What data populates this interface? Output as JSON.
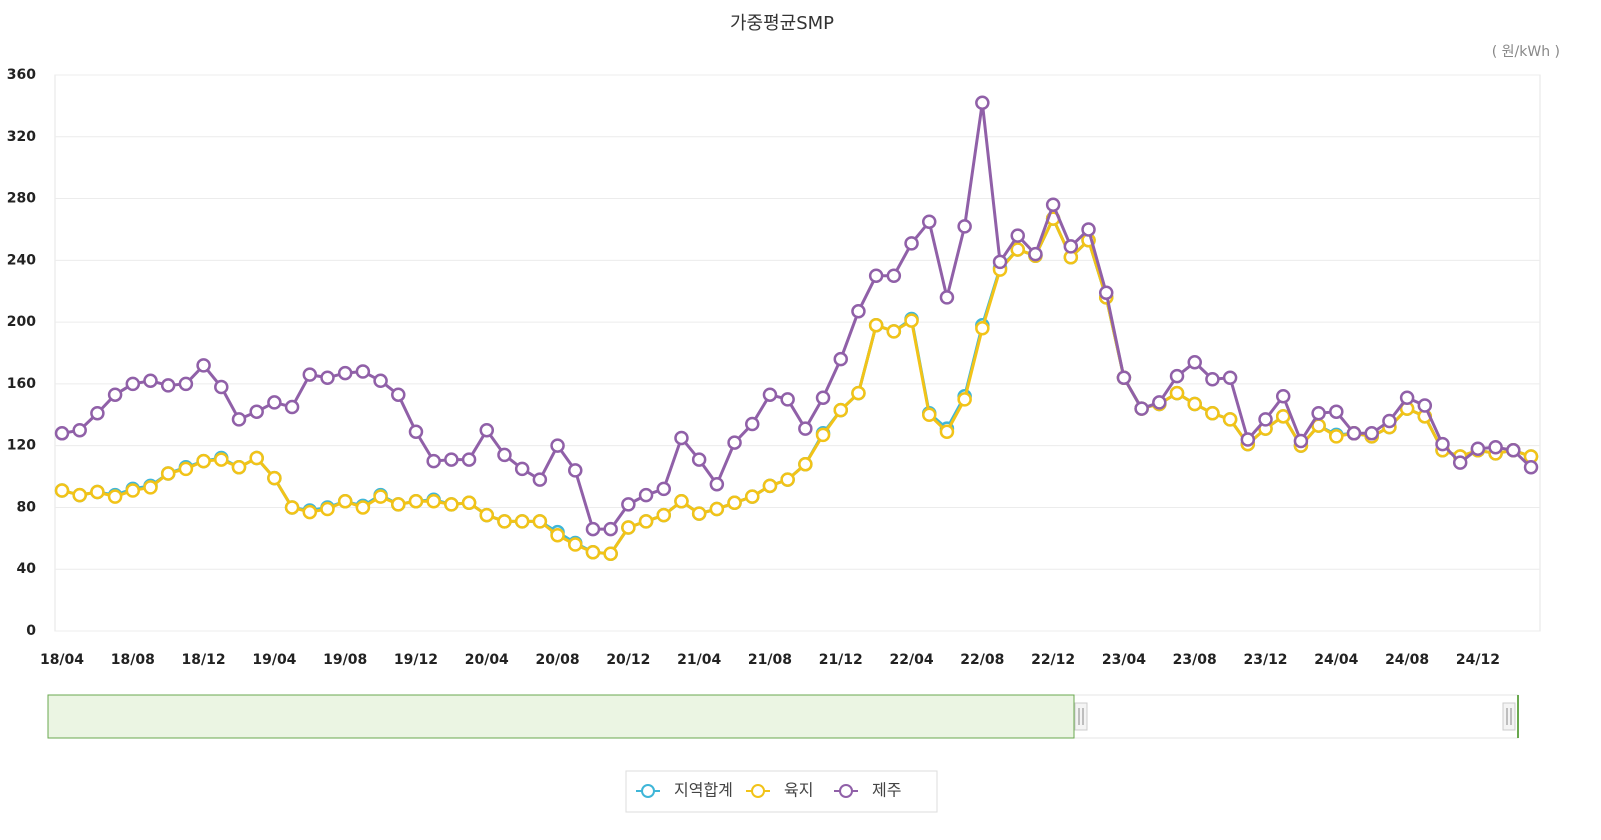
{
  "chart_data": {
    "type": "line",
    "title": "가중평균SMP",
    "unit_label": "( 원/kWh )",
    "categories": [
      "18/04",
      null,
      null,
      null,
      "18/08",
      null,
      null,
      null,
      "18/12",
      null,
      null,
      null,
      "19/04",
      null,
      null,
      null,
      "19/08",
      null,
      null,
      null,
      "19/12",
      null,
      null,
      null,
      "20/04",
      null,
      null,
      null,
      "20/08",
      null,
      null,
      null,
      "20/12",
      null,
      null,
      null,
      "21/04",
      null,
      null,
      null,
      "21/08",
      null,
      null,
      null,
      "21/12",
      null,
      null,
      null,
      "22/04",
      null,
      null,
      null,
      "22/08",
      null,
      null,
      null,
      "22/12",
      null,
      null,
      null,
      "23/04",
      null,
      null,
      null,
      "23/08",
      null,
      null,
      null,
      "23/12",
      null,
      null,
      null,
      "24/04",
      null,
      null,
      null,
      "24/08",
      null,
      null,
      null,
      "24/12",
      null,
      null,
      null
    ],
    "series": [
      {
        "name": "지역합계",
        "color": "#3fb6d8",
        "values": [
          91,
          88,
          90,
          88,
          92,
          94,
          102,
          106,
          110,
          112,
          106,
          112,
          99,
          80,
          78,
          80,
          84,
          81,
          88,
          82,
          84,
          85,
          82,
          83,
          75,
          71,
          71,
          71,
          64,
          57,
          51,
          50,
          67,
          71,
          75,
          84,
          76,
          79,
          83,
          87,
          94,
          98,
          108,
          128,
          143,
          154,
          198,
          194,
          202,
          141,
          131,
          152,
          198,
          235,
          247,
          243,
          267,
          242,
          253,
          216,
          164,
          144,
          147,
          154,
          147,
          141,
          137,
          121,
          131,
          139,
          120,
          133,
          127,
          128,
          126,
          132,
          144,
          139,
          117,
          113,
          117,
          115,
          117,
          113
        ]
      },
      {
        "name": "육지",
        "color": "#f2c318",
        "values": [
          91,
          88,
          90,
          87,
          91,
          93,
          102,
          105,
          110,
          111,
          106,
          112,
          99,
          80,
          77,
          79,
          84,
          80,
          87,
          82,
          84,
          84,
          82,
          83,
          75,
          71,
          71,
          71,
          62,
          56,
          51,
          50,
          67,
          71,
          75,
          84,
          76,
          79,
          83,
          87,
          94,
          98,
          108,
          127,
          143,
          154,
          198,
          194,
          201,
          140,
          129,
          150,
          196,
          234,
          247,
          243,
          267,
          242,
          253,
          216,
          164,
          144,
          147,
          154,
          147,
          141,
          137,
          121,
          131,
          139,
          120,
          133,
          126,
          128,
          126,
          132,
          144,
          139,
          117,
          113,
          117,
          115,
          117,
          113
        ]
      },
      {
        "name": "제주",
        "color": "#9060a8",
        "values": [
          128,
          130,
          141,
          153,
          160,
          162,
          159,
          160,
          172,
          158,
          137,
          142,
          148,
          145,
          166,
          164,
          167,
          168,
          162,
          153,
          129,
          110,
          111,
          111,
          130,
          114,
          105,
          98,
          120,
          104,
          66,
          66,
          82,
          88,
          92,
          125,
          111,
          95,
          122,
          134,
          153,
          150,
          131,
          151,
          176,
          207,
          230,
          230,
          251,
          265,
          216,
          262,
          342,
          239,
          256,
          244,
          276,
          249,
          260,
          219,
          164,
          144,
          148,
          165,
          174,
          163,
          164,
          124,
          137,
          152,
          123,
          141,
          142,
          128,
          128,
          136,
          151,
          146,
          121,
          109,
          118,
          119,
          117,
          106
        ]
      }
    ],
    "ylim": [
      0,
      360
    ],
    "yticks": [
      0,
      40,
      80,
      120,
      160,
      200,
      240,
      280,
      320,
      360
    ],
    "grid": true,
    "legend": "bottom"
  }
}
